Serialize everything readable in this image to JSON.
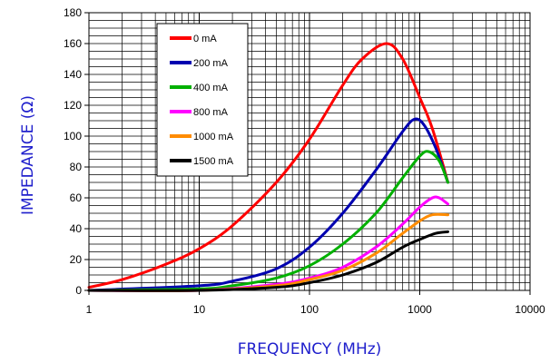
{
  "chart_data": {
    "type": "line",
    "xlabel": "FREQUENCY (MHz)",
    "ylabel": "IMPEDANCE (Ω)",
    "x_scale": "log",
    "xlim": [
      1,
      10000
    ],
    "ylim": [
      0,
      180
    ],
    "x_ticks": [
      "1",
      "10",
      "100",
      "1000",
      "10000"
    ],
    "y_ticks": [
      "0",
      "20",
      "40",
      "60",
      "80",
      "100",
      "120",
      "140",
      "160",
      "180"
    ],
    "grid": true,
    "legend_position": "top-left",
    "series": [
      {
        "name": "0 mA",
        "color": "#ff0000",
        "x": [
          1,
          2,
          5,
          10,
          20,
          50,
          100,
          200,
          300,
          500,
          700,
          1000,
          1300,
          1800
        ],
        "y": [
          2,
          7,
          17,
          27,
          42,
          70,
          98,
          133,
          150,
          160,
          150,
          125,
          105,
          70
        ]
      },
      {
        "name": "200 mA",
        "color": "#0000b0",
        "x": [
          1,
          10,
          20,
          50,
          100,
          200,
          400,
          700,
          900,
          1100,
          1400,
          1800
        ],
        "y": [
          0,
          3,
          6,
          14,
          28,
          50,
          78,
          103,
          111,
          107,
          92,
          70
        ]
      },
      {
        "name": "400 mA",
        "color": "#00b000",
        "x": [
          1,
          10,
          20,
          50,
          100,
          200,
          400,
          700,
          1000,
          1200,
          1500,
          1800
        ],
        "y": [
          0,
          1,
          3,
          8,
          16,
          30,
          50,
          73,
          87,
          90,
          84,
          70
        ]
      },
      {
        "name": "800 mA",
        "color": "#ff00ff",
        "x": [
          1,
          10,
          50,
          100,
          200,
          400,
          700,
          1000,
          1300,
          1500,
          1800
        ],
        "y": [
          0,
          0,
          4,
          8,
          15,
          28,
          43,
          54,
          60,
          60,
          56
        ]
      },
      {
        "name": "1000 mA",
        "color": "#ff8c00",
        "x": [
          1,
          10,
          50,
          100,
          200,
          400,
          700,
          1000,
          1300,
          1800
        ],
        "y": [
          0,
          0,
          3,
          7,
          13,
          24,
          37,
          45,
          49,
          49
        ]
      },
      {
        "name": "1500 mA",
        "color": "#000000",
        "x": [
          1,
          10,
          50,
          100,
          200,
          400,
          700,
          1000,
          1400,
          1800
        ],
        "y": [
          0,
          0,
          2,
          5,
          10,
          18,
          28,
          33,
          37,
          38
        ]
      }
    ]
  }
}
